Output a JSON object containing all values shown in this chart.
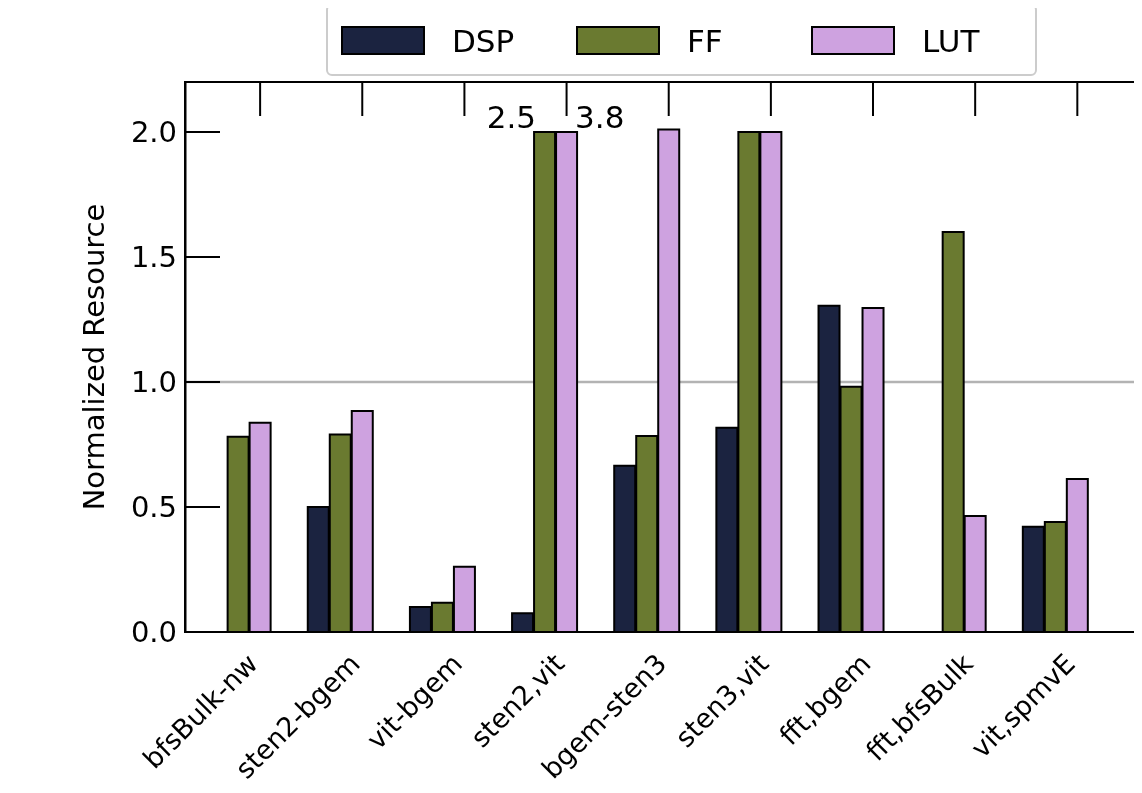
{
  "chart_data": {
    "type": "bar",
    "ylabel": "Normalized Resource",
    "categories": [
      "bfsBulk-nw",
      "sten2-bgem",
      "vit-bgem",
      "sten2,vit",
      "bgem-sten3",
      "sten3,vit",
      "fft,bgem",
      "fft,bfsBulk",
      "vit,spmvE"
    ],
    "series": [
      {
        "name": "DSP",
        "color": "#1b2340",
        "values": [
          0,
          0.5,
          0.1,
          0.075,
          0.665,
          0.817,
          1.305,
          0,
          0.421
        ]
      },
      {
        "name": "FF",
        "color": "#6a7a30",
        "values": [
          0.781,
          0.79,
          0.117,
          2.0,
          0.784,
          2.0,
          0.981,
          1.6,
          0.44
        ]
      },
      {
        "name": "LUT",
        "color": "#cea2e0",
        "values": [
          0.837,
          0.884,
          0.261,
          2.0,
          2.01,
          2.0,
          1.296,
          0.464,
          0.612
        ]
      }
    ],
    "ylim": [
      0,
      2.2
    ],
    "yticks": [
      {
        "value": 0,
        "label": "0.0"
      },
      0.5,
      {
        "value": 1,
        "label": "1.0"
      },
      1.5,
      {
        "value": 2,
        "label": "2.0"
      }
    ],
    "ref_lines": [
      {
        "axis": "y",
        "value": 1,
        "color": "#b3b3b3"
      }
    ],
    "annotations": [
      {
        "text": "2.5",
        "x": "sten2,vit",
        "y": 2.0
      },
      {
        "text": "3.8",
        "x": "sten2,vit",
        "y": 2.0
      }
    ],
    "legend": "top",
    "grid": false
  }
}
